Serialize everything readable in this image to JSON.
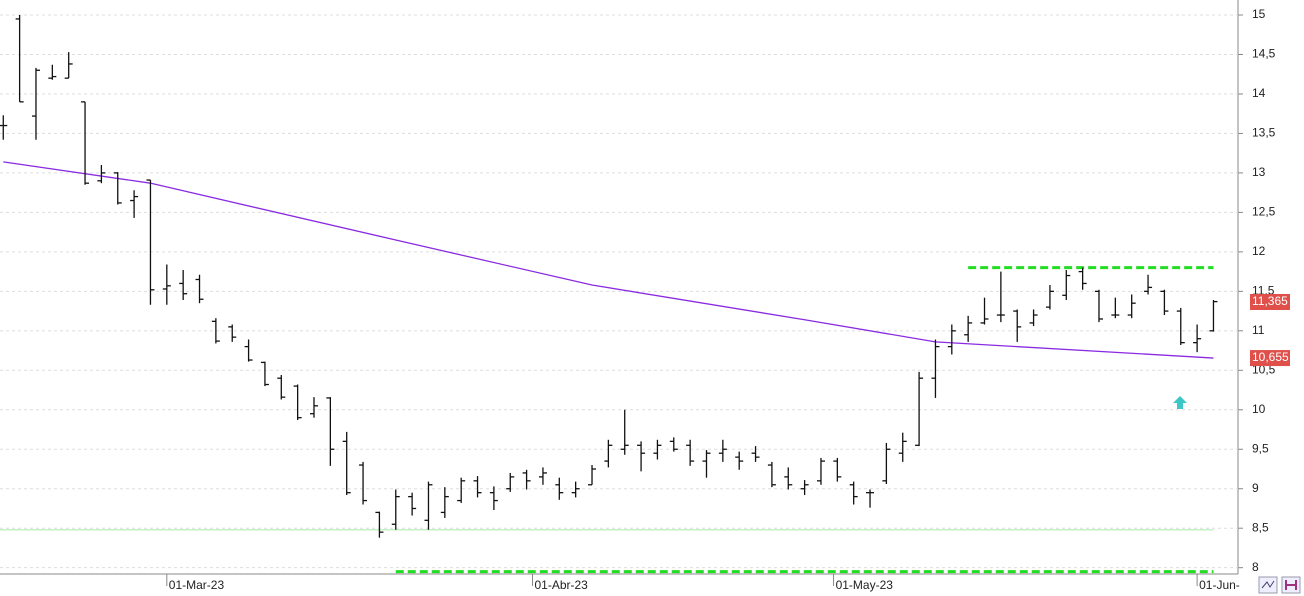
{
  "chart_data": {
    "type": "ohlc",
    "xlim": [
      -0.2,
      75.5
    ],
    "ylim": [
      7.92,
      15.19
    ],
    "grid": true,
    "xticks": [
      {
        "value": 10,
        "label": "01-Mar-23"
      },
      {
        "value": 32.36,
        "label": "01-Abr-23"
      },
      {
        "value": 50.77,
        "label": "01-May-23"
      },
      {
        "value": 73,
        "label": "01-Jun-"
      }
    ],
    "yticks": [
      8,
      {
        "value": 8.5,
        "label": "8,5"
      },
      9,
      {
        "value": 9.5,
        "label": "9,5"
      },
      10,
      {
        "value": 10.5,
        "label": "10,5"
      },
      11,
      {
        "value": 11.5,
        "label": "11,5"
      },
      12,
      {
        "value": 12.5,
        "label": "12,5"
      },
      13,
      {
        "value": 13.5,
        "label": "13,5"
      },
      14,
      {
        "value": 14.5,
        "label": "14,5"
      },
      15
    ],
    "bar_color": "#111111",
    "open": [
      13.6,
      14.95,
      13.72,
      14.2,
      14.2,
      13.9,
      12.9,
      13.0,
      12.65,
      12.91,
      11.53,
      11.6,
      11.65,
      11.12,
      11.05,
      10.8,
      10.6,
      10.4,
      10.3,
      9.95,
      10.15,
      9.6,
      9.3,
      8.7,
      8.55,
      8.9,
      8.6,
      8.7,
      8.85,
      9.1,
      8.95,
      9.0,
      9.2,
      9.15,
      9.05,
      8.95,
      9.05,
      9.35,
      9.5,
      9.55,
      9.45,
      9.6,
      9.55,
      9.35,
      9.45,
      9.4,
      9.45,
      9.3,
      9.15,
      9.0,
      9.1,
      9.35,
      9.05,
      8.95,
      9.1,
      9.45,
      9.55,
      10.4,
      10.8,
      10.95,
      11.1,
      11.2,
      11.25,
      11.1,
      11.3,
      11.45,
      11.75,
      11.5,
      11.2,
      11.2,
      11.5,
      11.5,
      11.25,
      10.85,
      11.0
    ],
    "high": [
      13.73,
      15.0,
      14.33,
      14.37,
      14.53,
      13.9,
      13.1,
      13.01,
      12.78,
      12.91,
      11.84,
      11.77,
      11.71,
      11.16,
      11.08,
      10.89,
      10.61,
      10.44,
      10.32,
      10.16,
      10.16,
      9.72,
      9.34,
      8.71,
      8.99,
      8.95,
      9.09,
      9.02,
      9.14,
      9.16,
      9.03,
      9.2,
      9.24,
      9.27,
      9.14,
      9.09,
      9.3,
      9.62,
      10.0,
      9.6,
      9.62,
      9.65,
      9.62,
      9.49,
      9.62,
      9.47,
      9.54,
      9.34,
      9.27,
      9.11,
      9.39,
      9.39,
      9.09,
      8.99,
      9.58,
      9.71,
      10.48,
      10.89,
      11.08,
      11.19,
      11.42,
      11.75,
      11.27,
      11.27,
      11.58,
      11.77,
      11.8,
      11.52,
      11.42,
      11.46,
      11.71,
      11.52,
      11.29,
      11.08,
      11.39
    ],
    "low": [
      13.42,
      13.9,
      13.42,
      14.18,
      14.2,
      12.85,
      12.87,
      12.6,
      12.43,
      11.33,
      11.33,
      11.39,
      11.35,
      10.84,
      10.86,
      10.61,
      10.3,
      10.13,
      9.87,
      9.9,
      9.29,
      8.92,
      8.8,
      8.38,
      8.48,
      8.66,
      8.48,
      8.63,
      8.82,
      8.89,
      8.73,
      8.96,
      8.99,
      9.05,
      8.86,
      8.89,
      9.05,
      9.27,
      9.43,
      9.22,
      9.37,
      9.47,
      9.29,
      9.14,
      9.34,
      9.24,
      9.34,
      9.02,
      8.99,
      8.92,
      9.05,
      9.09,
      8.8,
      8.76,
      9.06,
      9.34,
      9.54,
      10.15,
      10.7,
      10.86,
      11.08,
      11.11,
      10.86,
      11.06,
      11.27,
      11.39,
      11.52,
      11.11,
      11.16,
      11.16,
      11.46,
      11.2,
      10.82,
      10.73,
      10.99
    ],
    "close": [
      13.6,
      13.9,
      14.3,
      14.22,
      14.38,
      12.87,
      13.0,
      12.62,
      12.7,
      11.52,
      11.57,
      11.47,
      11.4,
      10.87,
      10.92,
      10.63,
      10.32,
      10.16,
      9.9,
      10.05,
      9.5,
      8.95,
      8.85,
      8.45,
      8.9,
      8.75,
      9.05,
      8.9,
      9.1,
      8.95,
      8.85,
      9.15,
      9.1,
      9.2,
      8.95,
      9.0,
      9.25,
      9.55,
      9.55,
      9.45,
      9.55,
      9.5,
      9.35,
      9.45,
      9.5,
      9.35,
      9.4,
      9.05,
      9.05,
      9.05,
      9.35,
      9.15,
      8.9,
      8.95,
      9.5,
      9.6,
      10.4,
      10.8,
      11.0,
      11.1,
      11.15,
      11.2,
      11.05,
      11.2,
      11.5,
      11.7,
      11.6,
      11.15,
      11.2,
      11.35,
      11.55,
      11.25,
      10.85,
      10.9,
      11.37
    ],
    "ma": {
      "color": "#8a2be2",
      "x": [
        0,
        9,
        24,
        36,
        49,
        57,
        74
      ],
      "values": [
        13.14,
        12.87,
        12.15,
        11.58,
        11.14,
        10.86,
        10.655
      ]
    },
    "levels": [
      {
        "y": 11.8,
        "x": [
          59,
          74
        ],
        "color": "#22dd22",
        "dash": true
      },
      {
        "y": 7.95,
        "x": [
          24,
          74
        ],
        "color": "#22dd22",
        "dash": true
      },
      {
        "y": 8.48,
        "x": [
          -0.2,
          74
        ],
        "color": "#c6f0c6",
        "dash": false
      }
    ],
    "price_labels": [
      {
        "value": 11.365,
        "label": "11,365",
        "color": "#e0504a"
      },
      {
        "value": 10.655,
        "label": "10,655",
        "color": "#e0504a"
      }
    ]
  }
}
